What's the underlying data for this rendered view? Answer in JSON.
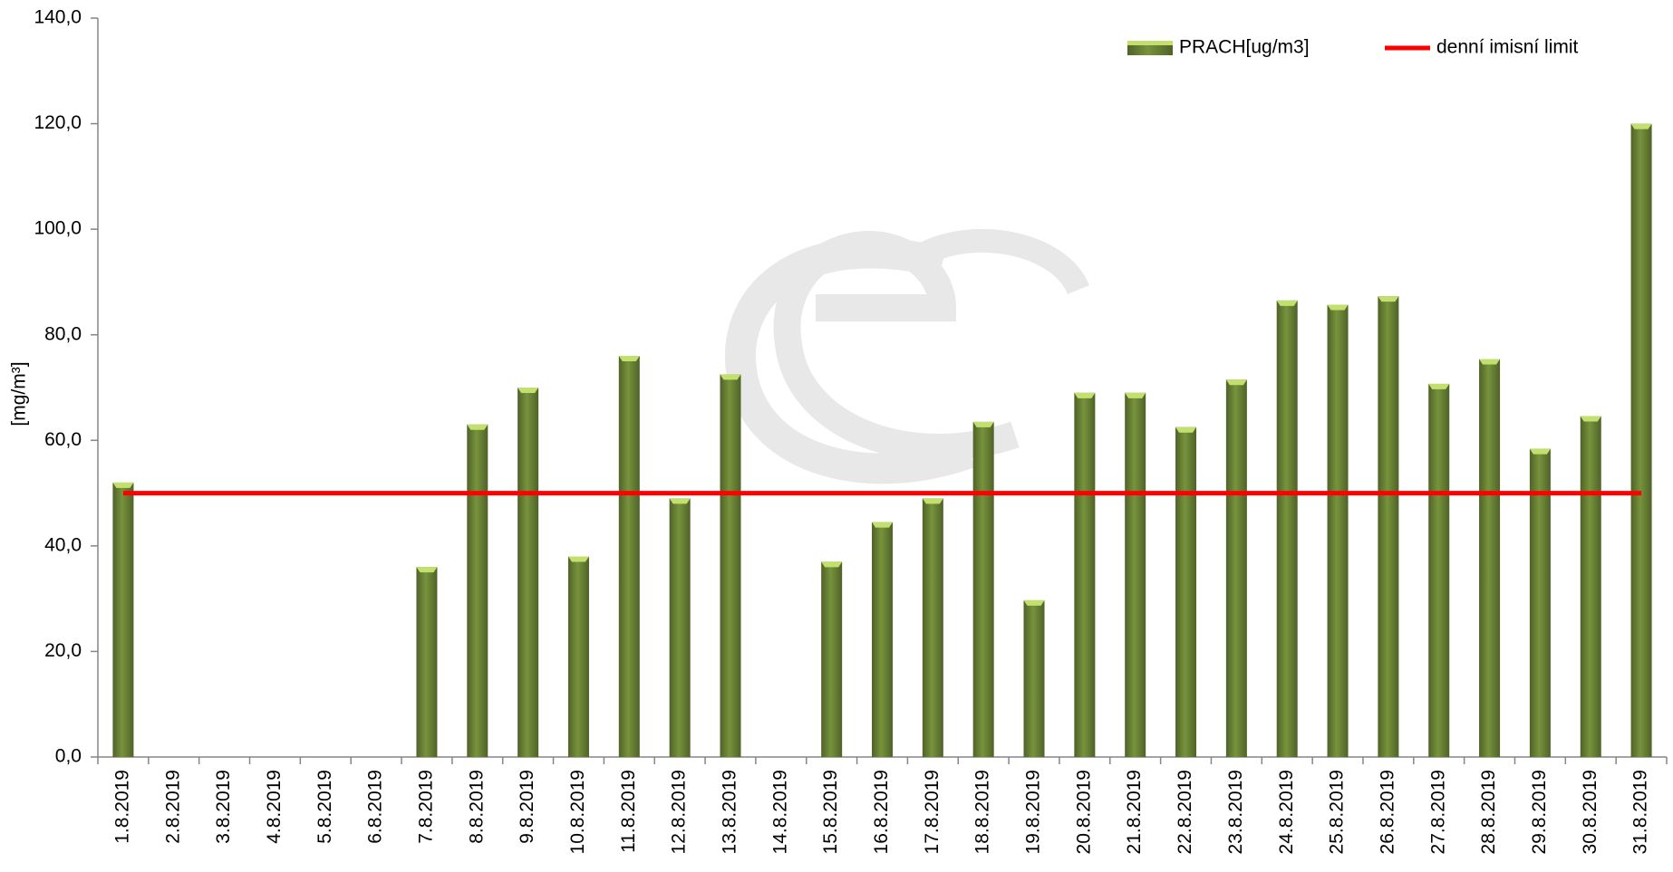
{
  "chart_data": {
    "type": "bar",
    "y_label": "[mg/m³]",
    "categories": [
      "1.8.2019",
      "2.8.2019",
      "3.8.2019",
      "4.8.2019",
      "5.8.2019",
      "6.8.2019",
      "7.8.2019",
      "8.8.2019",
      "9.8.2019",
      "10.8.2019",
      "11.8.2019",
      "12.8.2019",
      "13.8.2019",
      "14.8.2019",
      "15.8.2019",
      "16.8.2019",
      "17.8.2019",
      "18.8.2019",
      "19.8.2019",
      "20.8.2019",
      "21.8.2019",
      "22.8.2019",
      "23.8.2019",
      "24.8.2019",
      "25.8.2019",
      "26.8.2019",
      "27.8.2019",
      "28.8.2019",
      "29.8.2019",
      "30.8.2019",
      "31.8.2019"
    ],
    "series": [
      {
        "name": "PRACH[ug/m3]",
        "color": "#77933c",
        "type": "bar",
        "values": [
          52,
          null,
          null,
          null,
          null,
          null,
          36,
          63,
          70,
          38,
          76,
          49,
          72.5,
          null,
          37,
          44.5,
          49,
          63.5,
          29.7,
          69,
          69,
          62.5,
          71.5,
          86.5,
          85.7,
          87.3,
          70.7,
          75.4,
          58.4,
          64.6,
          120
        ]
      },
      {
        "name": "denní imisní limit",
        "color": "#ff0000",
        "type": "line",
        "values": [
          50,
          50,
          50,
          50,
          50,
          50,
          50,
          50,
          50,
          50,
          50,
          50,
          50,
          50,
          50,
          50,
          50,
          50,
          50,
          50,
          50,
          50,
          50,
          50,
          50,
          50,
          50,
          50,
          50,
          50,
          50
        ]
      }
    ],
    "ylim": [
      0,
      140
    ],
    "yticks": [
      {
        "value": 0,
        "label": "0,0"
      },
      {
        "value": 20,
        "label": "20,0"
      },
      {
        "value": 40,
        "label": "40,0"
      },
      {
        "value": 60,
        "label": "60,0"
      },
      {
        "value": 80,
        "label": "80,0"
      },
      {
        "value": 100,
        "label": "100,0"
      },
      {
        "value": 120,
        "label": "120,0"
      },
      {
        "value": 140,
        "label": "140,0"
      }
    ],
    "grid": false,
    "legend": "top-right"
  }
}
